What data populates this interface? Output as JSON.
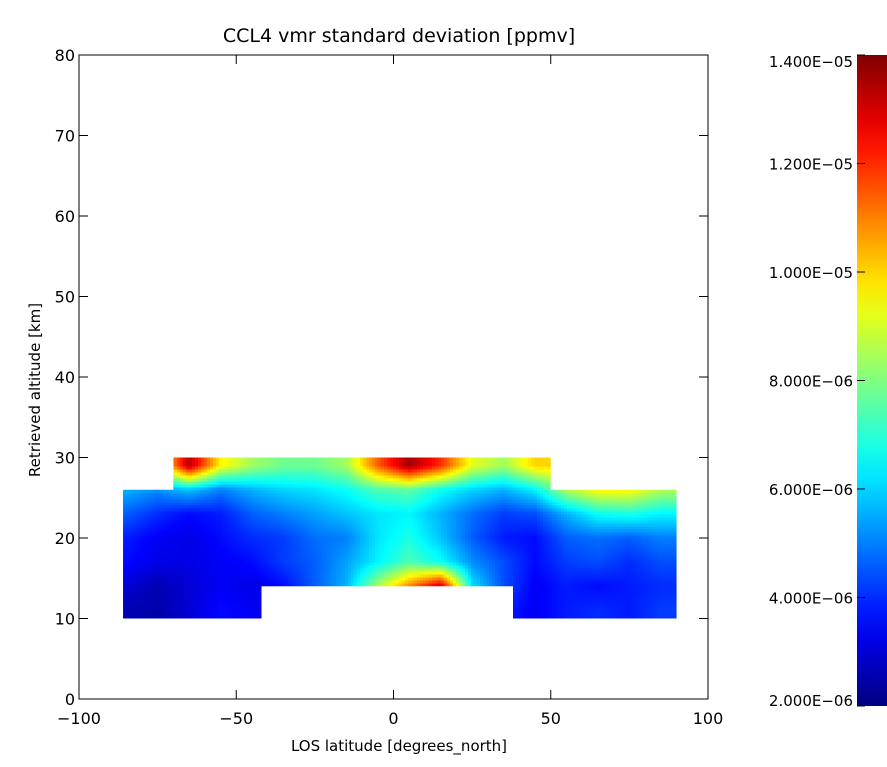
{
  "chart_data": {
    "type": "heatmap",
    "title": "CCL4 vmr standard deviation [ppmv]",
    "xlabel": "LOS latitude [degrees_north]",
    "ylabel": "Retrieved altitude [km]",
    "xlim": [
      -100,
      100
    ],
    "ylim": [
      0,
      80
    ],
    "x_ticks": [
      -100,
      -50,
      0,
      50,
      100
    ],
    "x_tick_labels": [
      "−100",
      "−50",
      "0",
      "50",
      "100"
    ],
    "y_ticks": [
      0,
      10,
      20,
      30,
      40,
      50,
      60,
      70,
      80
    ],
    "y_tick_labels": [
      "0",
      "10",
      "20",
      "30",
      "40",
      "50",
      "60",
      "70",
      "80"
    ],
    "colorbar": {
      "min": 2e-06,
      "max": 1.4e-05,
      "ticks": [
        2e-06,
        4e-06,
        6e-06,
        8e-06,
        1e-05,
        1.2e-05,
        1.4e-05
      ],
      "tick_labels": [
        "2.000E−06",
        "4.000E−06",
        "6.000E−06",
        "8.000E−06",
        "1.000E−05",
        "1.200E−05",
        "1.400E−05"
      ],
      "colormap": "jet"
    },
    "data_region": [
      {
        "lat": [
          -86,
          -70
        ],
        "alt": [
          10,
          26
        ]
      },
      {
        "lat": [
          -70,
          -42
        ],
        "alt": [
          10,
          30
        ]
      },
      {
        "lat": [
          -42,
          38
        ],
        "alt": [
          14,
          30
        ]
      },
      {
        "lat": [
          38,
          50
        ],
        "alt": [
          10,
          30
        ]
      },
      {
        "lat": [
          50,
          90
        ],
        "alt": [
          10,
          26
        ]
      }
    ],
    "field_lat": [
      -85,
      -75,
      -65,
      -55,
      -45,
      -35,
      -25,
      -15,
      -5,
      5,
      15,
      25,
      35,
      45,
      55,
      65,
      75,
      85
    ],
    "field_alt": [
      11,
      14,
      17,
      20,
      23,
      26,
      29
    ],
    "field_values": [
      [
        2.6e-06,
        2.5e-06,
        3e-06,
        3.6e-06,
        3.4e-06,
        3e-06,
        4e-06,
        4.4e-06,
        5e-06,
        5.8e-06,
        5.2e-06,
        4.2e-06,
        3.8e-06,
        3.4e-06,
        3.8e-06,
        4e-06,
        3.8e-06,
        4.2e-06
      ],
      [
        3e-06,
        2.6e-06,
        3e-06,
        3.4e-06,
        3.2e-06,
        3.6e-06,
        4.6e-06,
        5.6e-06,
        8.5e-06,
        1.1e-05,
        1.32e-05,
        6.2e-06,
        4.4e-06,
        3.4e-06,
        3.8e-06,
        3.6e-06,
        3.8e-06,
        4e-06
      ],
      [
        3.6e-06,
        3.2e-06,
        3.2e-06,
        3.4e-06,
        3.6e-06,
        4.2e-06,
        4.6e-06,
        5.4e-06,
        6.4e-06,
        7.4e-06,
        6.6e-06,
        5.2e-06,
        4.4e-06,
        3.6e-06,
        4.2e-06,
        4.4e-06,
        4e-06,
        4.4e-06
      ],
      [
        3.8e-06,
        3.4e-06,
        3.2e-06,
        3.6e-06,
        4e-06,
        4.2e-06,
        4.8e-06,
        5e-06,
        6.2e-06,
        6.8e-06,
        5.8e-06,
        4.6e-06,
        3.8e-06,
        3.6e-06,
        4.6e-06,
        4.8e-06,
        4.6e-06,
        5e-06
      ],
      [
        4.6e-06,
        4e-06,
        3.6e-06,
        3.8e-06,
        4.6e-06,
        5e-06,
        5.4e-06,
        5.8e-06,
        6.2e-06,
        6.4e-06,
        5.6e-06,
        4.8e-06,
        4.2e-06,
        4.4e-06,
        5.6e-06,
        6.6e-06,
        6.8e-06,
        6.4e-06
      ],
      [
        5.6e-06,
        5.2e-06,
        5.8e-06,
        5e-06,
        5.6e-06,
        6e-06,
        6.2e-06,
        6.6e-06,
        7.4e-06,
        7.6e-06,
        6.6e-06,
        6e-06,
        5.6e-06,
        6.4e-06,
        8.6e-06,
        9.6e-06,
        9.6e-06,
        8.6e-06
      ],
      [
        7.4e-06,
        8.6e-06,
        1.34e-05,
        9.6e-06,
        8.4e-06,
        7.8e-06,
        7.8e-06,
        8.4e-06,
        1.14e-05,
        1.36e-05,
        1.2e-05,
        9.2e-06,
        8.4e-06,
        1e-05,
        1e-05,
        1.08e-05,
        1e-05,
        9.6e-06
      ]
    ]
  }
}
